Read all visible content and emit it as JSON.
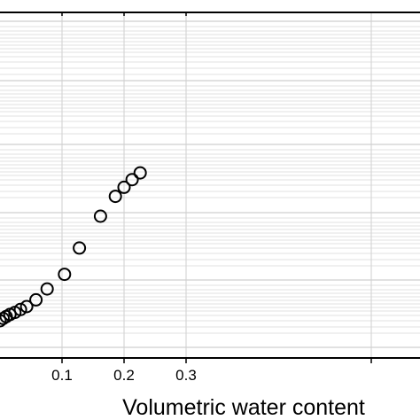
{
  "chart_data": {
    "type": "scatter",
    "title": "",
    "xlabel": "Volumetric water content",
    "ylabel": "",
    "xlim": [
      0,
      0.33
    ],
    "x_ticks": [
      "0.1",
      "0.2",
      "0.3"
    ],
    "x_tick_values": [
      0.1,
      0.2,
      0.3
    ],
    "y_scale": "log",
    "grid": true,
    "marker": "open-circle",
    "colors": {
      "marker_stroke": "#000000",
      "grid_major": "#cfcfcf",
      "grid_minor": "#e2e2e2",
      "axis": "#000000"
    },
    "series": [
      {
        "x": [
          0.0,
          0.005,
          0.01,
          0.016,
          0.024,
          0.033,
          0.043,
          0.058,
          0.076,
          0.104,
          0.128,
          0.162,
          0.186,
          0.2,
          0.213,
          0.226
        ],
        "y": [
          0.0,
          0.011,
          0.02,
          0.03,
          0.04,
          0.054,
          0.068,
          0.1,
          0.152,
          0.222,
          0.348,
          0.5,
          0.595,
          0.638,
          0.675,
          0.707
        ]
      }
    ]
  }
}
